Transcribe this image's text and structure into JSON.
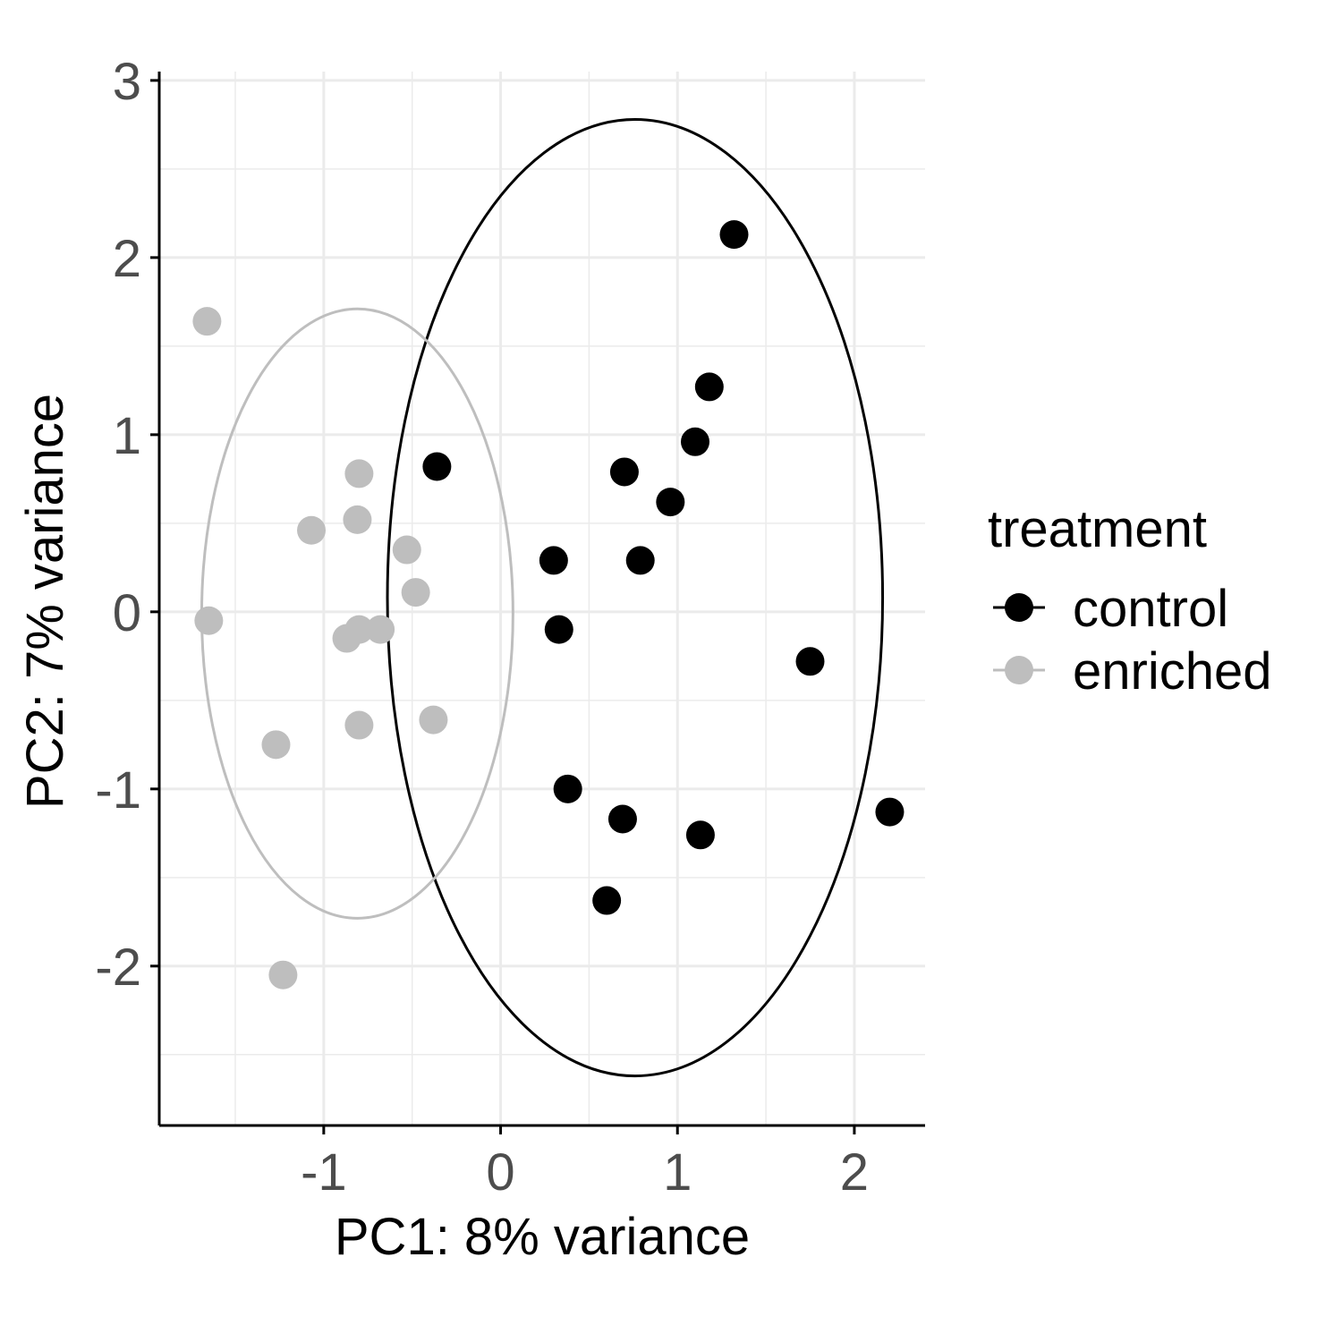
{
  "chart_data": {
    "type": "scatter",
    "title": "",
    "xlabel": "PC1: 8% variance",
    "ylabel": "PC2: 7% variance",
    "xlim": [
      -1.93,
      2.4
    ],
    "ylim": [
      -2.9,
      3.05
    ],
    "x_ticks": [
      -1,
      0,
      1,
      2
    ],
    "y_ticks": [
      -2,
      -1,
      0,
      1,
      2,
      3
    ],
    "x_tick_labels": [
      "-1",
      "0",
      "1",
      "2"
    ],
    "y_tick_labels": [
      "-2",
      "-1",
      "0",
      "1",
      "2",
      "3"
    ],
    "grid": true,
    "legend": {
      "title": "treatment",
      "position": "right"
    },
    "series": [
      {
        "name": "control",
        "color": "#000000",
        "points": [
          {
            "x": 1.32,
            "y": 2.13
          },
          {
            "x": 1.18,
            "y": 1.27
          },
          {
            "x": 1.1,
            "y": 0.96
          },
          {
            "x": 0.7,
            "y": 0.79
          },
          {
            "x": -0.36,
            "y": 0.82
          },
          {
            "x": 0.96,
            "y": 0.62
          },
          {
            "x": 0.3,
            "y": 0.29
          },
          {
            "x": 0.79,
            "y": 0.29
          },
          {
            "x": 0.33,
            "y": -0.1
          },
          {
            "x": 1.75,
            "y": -0.28
          },
          {
            "x": 0.38,
            "y": -1.0
          },
          {
            "x": 0.69,
            "y": -1.17
          },
          {
            "x": 1.13,
            "y": -1.26
          },
          {
            "x": 2.2,
            "y": -1.13
          },
          {
            "x": 0.6,
            "y": -1.63
          }
        ],
        "ellipse": {
          "cx": 0.76,
          "cy": 0.08,
          "rx": 1.4,
          "ry": 2.7
        }
      },
      {
        "name": "enriched",
        "color": "#bebebe",
        "points": [
          {
            "x": -1.66,
            "y": 1.64
          },
          {
            "x": -0.8,
            "y": 0.78
          },
          {
            "x": -1.07,
            "y": 0.46
          },
          {
            "x": -0.81,
            "y": 0.52
          },
          {
            "x": -0.53,
            "y": 0.35
          },
          {
            "x": -0.48,
            "y": 0.11
          },
          {
            "x": -1.65,
            "y": -0.05
          },
          {
            "x": -0.87,
            "y": -0.15
          },
          {
            "x": -0.8,
            "y": -0.1
          },
          {
            "x": -0.68,
            "y": -0.1
          },
          {
            "x": -0.8,
            "y": -0.64
          },
          {
            "x": -0.38,
            "y": -0.61
          },
          {
            "x": -1.27,
            "y": -0.75
          },
          {
            "x": -1.23,
            "y": -2.05
          }
        ],
        "ellipse": {
          "cx": -0.81,
          "cy": -0.01,
          "rx": 0.88,
          "ry": 1.72
        }
      }
    ]
  }
}
